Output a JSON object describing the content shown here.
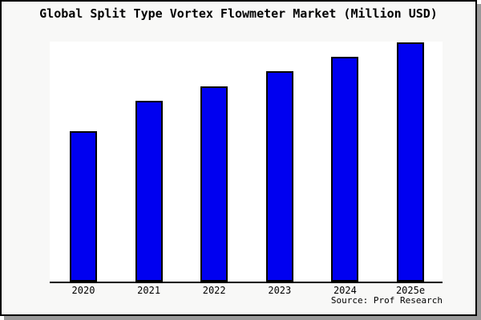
{
  "window": {
    "panel_background": "#f8f8f7",
    "panel_border_color": "#000000",
    "panel_shadow_color": "#999999",
    "plot_background": "#ffffff"
  },
  "chart_data": {
    "type": "bar",
    "title": "Global Split Type Vortex Flowmeter Market (Million USD)",
    "categories": [
      "2020",
      "2021",
      "2022",
      "2023",
      "2024",
      "2025e"
    ],
    "values_relative_pct_of_max": [
      63.0,
      75.5,
      81.7,
      87.9,
      94.0,
      100.0
    ],
    "value_axis_note": "no y-axis ticks or gridlines shown; values are bar heights relative to tallest (2025e) bar",
    "xlabel": "",
    "ylabel": "",
    "ylim": [
      0,
      100
    ],
    "grid": false,
    "legend": false,
    "bar_color": "#0000f0",
    "bar_edge_color": "#000000",
    "axis_line_color": "#000000",
    "source": "Source: Prof Research"
  }
}
